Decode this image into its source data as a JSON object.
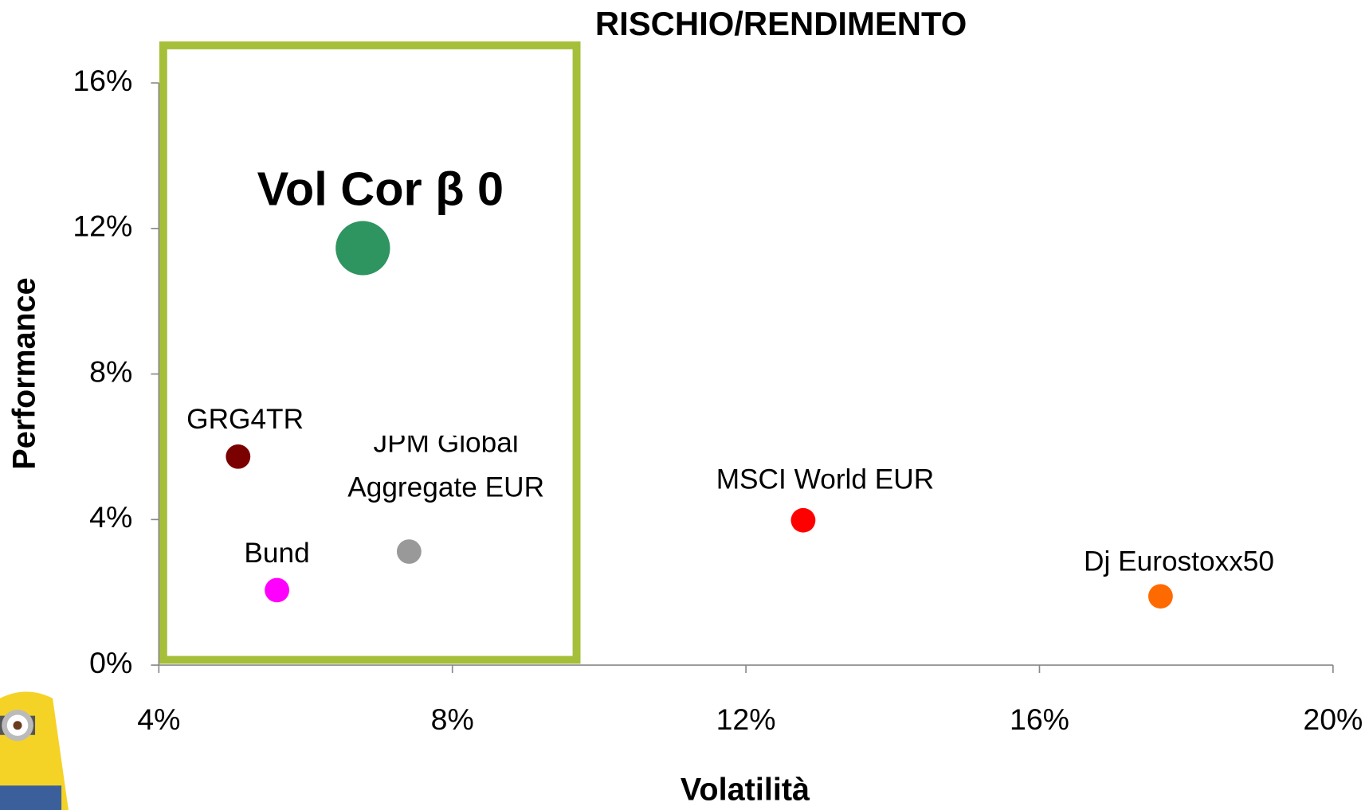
{
  "chart_data": {
    "type": "scatter",
    "title": "RISCHIO/RENDIMENTO",
    "x_label": "Volatilità",
    "y_label": "Performance",
    "xlim": [
      4,
      20
    ],
    "xticks": [
      {
        "value": 4,
        "label": "4%"
      },
      {
        "value": 8,
        "label": "8%"
      },
      {
        "value": 12,
        "label": "12%"
      },
      {
        "value": 16,
        "label": "16%"
      },
      {
        "value": 20,
        "label": "20%"
      }
    ],
    "ylim": [
      0,
      16
    ],
    "yticks": [
      {
        "value": 0,
        "label": "0%"
      },
      {
        "value": 4,
        "label": "4%"
      },
      {
        "value": 8,
        "label": "8%"
      },
      {
        "value": 12,
        "label": "12%"
      },
      {
        "value": 16,
        "label": "16%"
      }
    ],
    "grid": false,
    "series": [
      {
        "name": "Vol Cor β 0",
        "color": "#2e9460",
        "x": [
          6.78
        ],
        "values": [
          11.46
        ]
      },
      {
        "name": "GRG4TR",
        "color": "#7b0000",
        "x": [
          5.08
        ],
        "values": [
          5.73
        ]
      },
      {
        "name": "Bund",
        "color": "#ff00ff",
        "x": [
          5.61
        ],
        "values": [
          2.06
        ]
      },
      {
        "name": "JPM Global Aggregate EUR",
        "color": "#999999",
        "x": [
          7.41
        ],
        "values": [
          3.12
        ]
      },
      {
        "name": "MSCI World EUR",
        "color": "#ff0000",
        "x": [
          12.78
        ],
        "values": [
          3.98
        ]
      },
      {
        "name": "Dj Eurostoxx50",
        "color": "#ff6a00",
        "x": [
          17.65
        ],
        "values": [
          1.89
        ]
      }
    ]
  }
}
